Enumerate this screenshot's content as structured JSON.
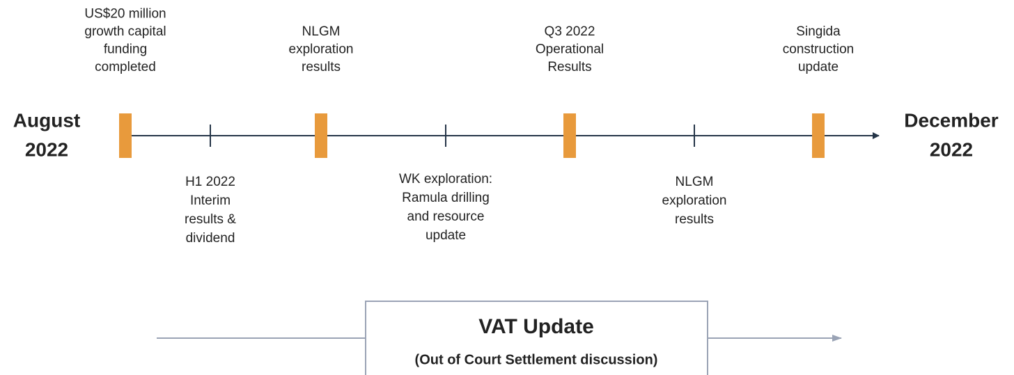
{
  "timeline": {
    "start": [
      "August",
      "2022"
    ],
    "end": [
      "December",
      "2022"
    ],
    "above": [
      [
        "US$20 million",
        "growth capital",
        "funding",
        "completed"
      ],
      [
        "NLGM",
        "exploration",
        "results"
      ],
      [
        "Q3 2022",
        "Operational",
        "Results"
      ],
      [
        "Singida",
        "construction",
        "update"
      ]
    ],
    "below": [
      [
        "H1 2022",
        "Interim",
        "results &",
        "dividend"
      ],
      [
        "WK exploration:",
        "Ramula drilling",
        "and resource",
        "update"
      ],
      [
        "NLGM",
        "exploration",
        "results"
      ]
    ]
  },
  "vat": {
    "title": "VAT Update",
    "subtitle": "(Out of Court Settlement discussion)"
  }
}
